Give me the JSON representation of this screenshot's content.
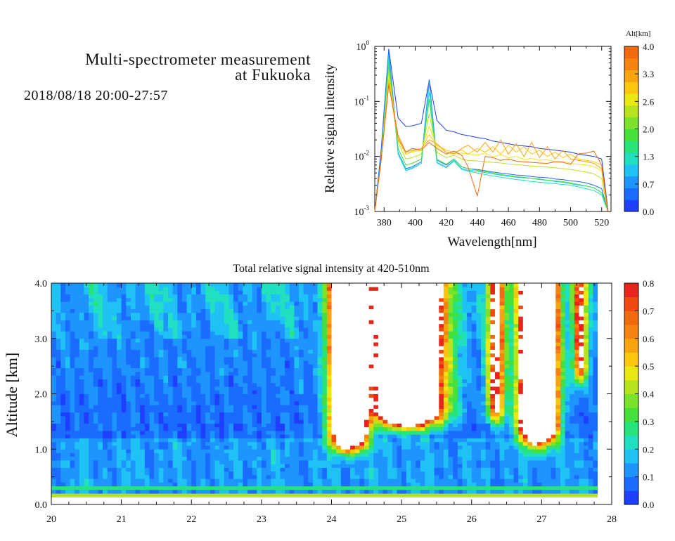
{
  "header": {
    "title_line1": "Multi-spectrometer measurement",
    "title_line2": "at Fukuoka",
    "time_range": "2018/08/18 20:00-27:57"
  },
  "chart_data": [
    {
      "type": "line",
      "xlabel": "Wavelength[nm]",
      "ylabel": "Relative signal intensity",
      "xlim": [
        374,
        526
      ],
      "ylim": [
        0.001,
        1
      ],
      "yscale": "log",
      "x_ticks": [
        380,
        400,
        420,
        440,
        460,
        480,
        500,
        520
      ],
      "y_ticks": [
        {
          "value": 1,
          "label": "10",
          "exp": "0"
        },
        {
          "value": 0.1,
          "label": "10",
          "exp": "-1"
        },
        {
          "value": 0.01,
          "label": "10",
          "exp": "-2"
        },
        {
          "value": 0.001,
          "label": "10",
          "exp": "-3"
        }
      ],
      "colorbar": {
        "title": "Alt[km]",
        "ticks": [
          "0.0",
          "0.7",
          "1.3",
          "2.0",
          "2.6",
          "3.3",
          "4.0"
        ],
        "colors": [
          "#1f3fff",
          "#1a6cff",
          "#1e94ff",
          "#1fc2f5",
          "#20e0c0",
          "#26e37a",
          "#46e03a",
          "#7ae22a",
          "#b6e41c",
          "#eae812",
          "#fcc60e",
          "#f8a40e",
          "#f4840f",
          "#f26a10"
        ]
      },
      "x": [
        374,
        378,
        383,
        389,
        394,
        398,
        404,
        409,
        414,
        420,
        425,
        430,
        434,
        440,
        445,
        450,
        455,
        460,
        465,
        470,
        475,
        480,
        485,
        490,
        495,
        500,
        505,
        510,
        515,
        520,
        524
      ],
      "series": [
        {
          "color": "#1f3fff",
          "values": [
            0.001,
            0.012,
            0.9,
            0.05,
            0.035,
            0.036,
            0.04,
            0.24,
            0.045,
            0.03,
            0.028,
            0.025,
            0.024,
            0.022,
            0.021,
            0.019,
            0.018,
            0.017,
            0.016,
            0.0155,
            0.015,
            0.014,
            0.0135,
            0.013,
            0.0125,
            0.012,
            0.011,
            0.0105,
            0.01,
            0.009,
            0.0011
          ]
        },
        {
          "color": "#1a6cff",
          "values": [
            0.001,
            0.01,
            0.85,
            0.012,
            0.006,
            0.0065,
            0.008,
            0.25,
            0.0085,
            0.007,
            0.009,
            0.0065,
            0.006,
            0.0058,
            0.0055,
            0.0052,
            0.005,
            0.0048,
            0.0046,
            0.0045,
            0.0043,
            0.0042,
            0.0041,
            0.0039,
            0.0038,
            0.0036,
            0.0035,
            0.0033,
            0.003,
            0.0026,
            0.001
          ]
        },
        {
          "color": "#1fc2f5",
          "values": [
            0.001,
            0.009,
            0.7,
            0.011,
            0.0055,
            0.006,
            0.0075,
            0.22,
            0.0078,
            0.0065,
            0.0085,
            0.006,
            0.0056,
            0.0054,
            0.0051,
            0.0048,
            0.0046,
            0.0044,
            0.0042,
            0.0041,
            0.004,
            0.0038,
            0.0037,
            0.0035,
            0.0034,
            0.0032,
            0.003,
            0.0029,
            0.0027,
            0.0022,
            0.001
          ]
        },
        {
          "color": "#20e0c0",
          "values": [
            0.001,
            0.008,
            0.55,
            0.012,
            0.0058,
            0.0062,
            0.0075,
            0.15,
            0.0076,
            0.0062,
            0.0082,
            0.0058,
            0.0054,
            0.005,
            0.0047,
            0.0044,
            0.0042,
            0.004,
            0.0038,
            0.0037,
            0.0035,
            0.0034,
            0.0033,
            0.0032,
            0.0031,
            0.003,
            0.0028,
            0.0026,
            0.0024,
            0.002,
            0.001
          ]
        },
        {
          "color": "#46e03a",
          "values": [
            0.001,
            0.008,
            0.45,
            0.014,
            0.007,
            0.0075,
            0.009,
            0.11,
            0.009,
            0.0072,
            0.009,
            0.0065,
            0.006,
            0.0056,
            0.0053,
            0.005,
            0.0047,
            0.0045,
            0.0043,
            0.0042,
            0.004,
            0.0039,
            0.0037,
            0.0036,
            0.0035,
            0.0033,
            0.0031,
            0.0029,
            0.0027,
            0.0022,
            0.001
          ]
        },
        {
          "color": "#b6e41c",
          "values": [
            0.001,
            0.008,
            0.36,
            0.018,
            0.009,
            0.0095,
            0.011,
            0.06,
            0.012,
            0.0095,
            0.0105,
            0.009,
            0.0085,
            0.0083,
            0.008,
            0.0078,
            0.0076,
            0.0073,
            0.0071,
            0.0069,
            0.0067,
            0.0066,
            0.0064,
            0.0062,
            0.006,
            0.0058,
            0.0055,
            0.0052,
            0.0048,
            0.004,
            0.001
          ]
        },
        {
          "color": "#eae812",
          "values": [
            0.001,
            0.008,
            0.3,
            0.02,
            0.011,
            0.012,
            0.013,
            0.035,
            0.015,
            0.012,
            0.011,
            0.0115,
            0.011,
            0.0105,
            0.0115,
            0.0098,
            0.0108,
            0.0095,
            0.01,
            0.0088,
            0.0092,
            0.0085,
            0.0088,
            0.008,
            0.0082,
            0.0075,
            0.0072,
            0.007,
            0.0065,
            0.0055,
            0.001
          ]
        },
        {
          "color": "#fcc60e",
          "values": [
            0.001,
            0.008,
            0.25,
            0.022,
            0.011,
            0.0125,
            0.014,
            0.025,
            0.016,
            0.013,
            0.012,
            0.013,
            0.011,
            0.014,
            0.012,
            0.015,
            0.011,
            0.016,
            0.012,
            0.015,
            0.011,
            0.013,
            0.01,
            0.012,
            0.0095,
            0.011,
            0.009,
            0.0085,
            0.008,
            0.007,
            0.001
          ]
        },
        {
          "color": "#f8a40e",
          "values": [
            0.001,
            0.008,
            0.22,
            0.02,
            0.012,
            0.013,
            0.014,
            0.02,
            0.017,
            0.012,
            0.011,
            0.014,
            0.016,
            0.012,
            0.018,
            0.012,
            0.02,
            0.011,
            0.017,
            0.01,
            0.018,
            0.0095,
            0.015,
            0.009,
            0.013,
            0.009,
            0.0085,
            0.008,
            0.0075,
            0.006,
            0.001
          ]
        },
        {
          "color": "#f26a10",
          "values": [
            0.001,
            0.008,
            0.2,
            0.024,
            0.012,
            0.014,
            0.013,
            0.018,
            0.014,
            0.011,
            0.0125,
            0.0105,
            0.0065,
            0.0019,
            0.01,
            0.0095,
            0.0085,
            0.009,
            0.0082,
            0.008,
            0.0078,
            0.0076,
            0.0075,
            0.008,
            0.0078,
            0.0072,
            0.0112,
            0.0115,
            0.0125,
            0.007,
            0.001
          ]
        }
      ]
    },
    {
      "type": "heatmap",
      "title": "Total relative signal intensity at 420-510nm",
      "xlabel": "",
      "ylabel": "Altitude [km]",
      "xlim": [
        20,
        28
      ],
      "ylim": [
        0,
        4
      ],
      "x_ticks": [
        "20",
        "21",
        "22",
        "23",
        "24",
        "25",
        "26",
        "27",
        "28"
      ],
      "y_ticks": [
        "0.0",
        "1.0",
        "2.0",
        "3.0",
        "4.0"
      ],
      "colorbar": {
        "ticks": [
          "0.0",
          "0.1",
          "0.2",
          "0.3",
          "0.4",
          "0.5",
          "0.6",
          "0.7",
          "0.8"
        ],
        "range": [
          0,
          0.8
        ],
        "colors": [
          "#1f3fff",
          "#1a6cff",
          "#1e94ff",
          "#1fc2f5",
          "#20e0c0",
          "#26e37a",
          "#46e03a",
          "#7ae22a",
          "#b6e41c",
          "#eae812",
          "#fcc60e",
          "#f8a40e",
          "#f4840f",
          "#f26a10",
          "#f04a10",
          "#e8251c"
        ],
        "over_color": "#ffffff"
      },
      "plumes": [
        {
          "center": 24.25,
          "width": 0.22,
          "base_km": 1.35,
          "peak": 2.4
        },
        {
          "center": 25.1,
          "width": 0.42,
          "base_km": 1.75,
          "peak": 2.2
        },
        {
          "center": 26.95,
          "width": 0.22,
          "base_km": 1.45,
          "peak": 2.6
        },
        {
          "center": 26.35,
          "width": 0.12,
          "base_km": 1.8,
          "peak": 0.8
        },
        {
          "center": 27.55,
          "width": 0.1,
          "base_km": 2.5,
          "peak": 0.7
        }
      ],
      "bands": [
        {
          "alt_km": 0.18,
          "value": 0.45
        },
        {
          "alt_km": 0.3,
          "value": 0.28
        }
      ]
    }
  ]
}
